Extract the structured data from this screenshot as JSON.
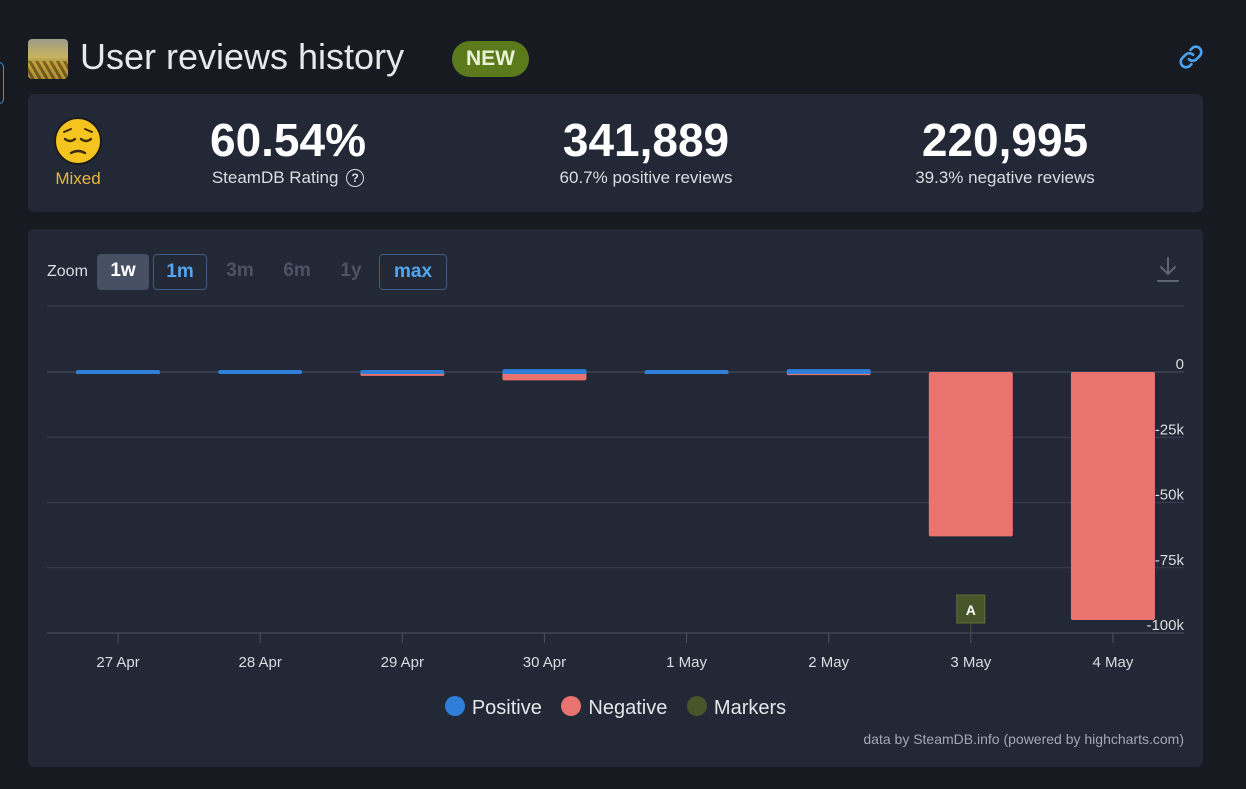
{
  "header": {
    "title": "User reviews history",
    "badge": "NEW"
  },
  "summary": {
    "rating_word": "Mixed",
    "rating_value": "60.54%",
    "rating_label": "SteamDB Rating",
    "help_glyph": "?",
    "positive_count": "341,889",
    "positive_label": "60.7% positive reviews",
    "negative_count": "220,995",
    "negative_label": "39.3% negative reviews"
  },
  "zoom": {
    "label": "Zoom",
    "buttons": [
      {
        "label": "1w",
        "state": "active"
      },
      {
        "label": "1m",
        "state": "outlined"
      },
      {
        "label": "3m",
        "state": "disabled"
      },
      {
        "label": "6m",
        "state": "disabled"
      },
      {
        "label": "1y",
        "state": "disabled"
      },
      {
        "label": "max",
        "state": "outlined"
      }
    ]
  },
  "colors": {
    "positive": "#2f7ed8",
    "negative": "#e8736f",
    "marker": "#47552a",
    "grid": "#39404f",
    "axis_text": "#d9dce0"
  },
  "chart_data": {
    "type": "bar",
    "categories": [
      "27 Apr",
      "28 Apr",
      "29 Apr",
      "30 Apr",
      "1 May",
      "2 May",
      "3 May",
      "4 May"
    ],
    "series": [
      {
        "name": "Positive",
        "values": [
          250,
          1000,
          700,
          1500,
          350,
          1500,
          0,
          0
        ]
      },
      {
        "name": "Negative",
        "values": [
          -250,
          0,
          -1500,
          -3200,
          -700,
          -1200,
          -63000,
          -95000
        ]
      }
    ],
    "yticks": [
      "0",
      "-25k",
      "-50k",
      "-75k",
      "-100k"
    ],
    "ylim": [
      -100000,
      25000
    ],
    "grid": true,
    "markers": [
      {
        "category": "3 May",
        "label": "A"
      }
    ],
    "legend": [
      "Positive",
      "Negative",
      "Markers"
    ],
    "legend_position": "bottom-center",
    "credits": "data by SteamDB.info (powered by highcharts.com)"
  }
}
